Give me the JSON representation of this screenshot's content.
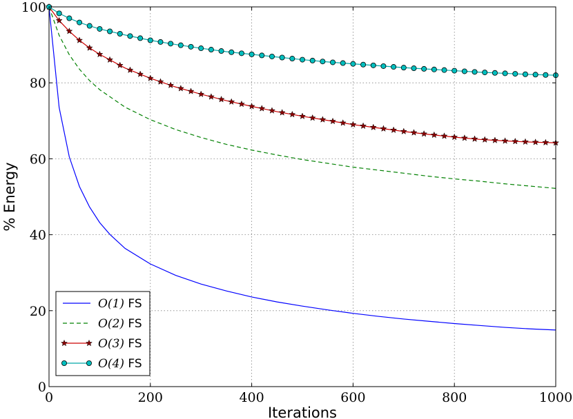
{
  "chart_data": {
    "type": "line",
    "title": "",
    "xlabel": "Iterations",
    "ylabel": "% Energy",
    "xlim": [
      0,
      1000
    ],
    "ylim": [
      0,
      100
    ],
    "xticks": [
      0,
      200,
      400,
      600,
      800,
      1000
    ],
    "yticks": [
      0,
      20,
      40,
      60,
      80,
      100
    ],
    "grid": true,
    "legend_position": "lower-left",
    "series": [
      {
        "name_prefix": "O(1)",
        "name_suffix": "FS",
        "color": "#0000ff",
        "style": "solid",
        "marker": "none",
        "x": [
          0,
          20,
          40,
          60,
          80,
          100,
          120,
          150,
          200,
          250,
          300,
          350,
          400,
          450,
          500,
          550,
          600,
          650,
          700,
          750,
          800,
          850,
          900,
          950,
          1000
        ],
        "y": [
          100,
          73.5,
          60.5,
          52.7,
          47.3,
          43.2,
          40.1,
          36.4,
          32.3,
          29.3,
          27.0,
          25.2,
          23.6,
          22.3,
          21.2,
          20.2,
          19.3,
          18.5,
          17.8,
          17.2,
          16.6,
          16.1,
          15.6,
          15.2,
          14.9
        ]
      },
      {
        "name_prefix": "O(2)",
        "name_suffix": "FS",
        "color": "#008000",
        "style": "dashed",
        "marker": "none",
        "x": [
          0,
          20,
          40,
          60,
          80,
          100,
          150,
          200,
          250,
          300,
          350,
          400,
          450,
          500,
          550,
          600,
          650,
          700,
          750,
          800,
          850,
          900,
          950,
          1000
        ],
        "y": [
          100,
          92.5,
          87.4,
          83.6,
          80.6,
          78.2,
          73.6,
          70.3,
          67.7,
          65.6,
          63.8,
          62.3,
          61.0,
          59.8,
          58.8,
          57.8,
          57.0,
          56.2,
          55.4,
          54.7,
          54.1,
          53.4,
          52.8,
          52.2
        ]
      },
      {
        "name_prefix": "O(3)",
        "name_suffix": "FS",
        "color": "#cc0000",
        "marker_color": "#8b0000",
        "style": "solid",
        "marker": "star",
        "x": [
          0,
          20,
          40,
          60,
          80,
          100,
          150,
          200,
          250,
          300,
          350,
          400,
          450,
          500,
          550,
          600,
          650,
          700,
          750,
          800,
          850,
          900,
          950,
          1000
        ],
        "y": [
          100,
          96.4,
          93.6,
          91.2,
          89.2,
          87.5,
          83.9,
          81.2,
          78.9,
          77.0,
          75.3,
          73.8,
          72.4,
          71.2,
          70.1,
          69.0,
          68.1,
          67.2,
          66.4,
          65.7,
          65.1,
          64.7,
          64.4,
          64.2
        ]
      },
      {
        "name_prefix": "O(4)",
        "name_suffix": "FS",
        "color": "#00a8a8",
        "marker_color": "#00bfbf",
        "style": "solid",
        "marker": "circle",
        "x": [
          0,
          20,
          40,
          60,
          80,
          100,
          150,
          200,
          250,
          300,
          350,
          400,
          450,
          500,
          550,
          600,
          650,
          700,
          750,
          800,
          850,
          900,
          950,
          1000
        ],
        "y": [
          100,
          98.3,
          97.0,
          95.9,
          95.0,
          94.2,
          92.6,
          91.2,
          90.1,
          89.1,
          88.2,
          87.5,
          86.8,
          86.1,
          85.5,
          85.0,
          84.5,
          84.0,
          83.6,
          83.2,
          82.8,
          82.5,
          82.2,
          82.0
        ]
      }
    ]
  }
}
